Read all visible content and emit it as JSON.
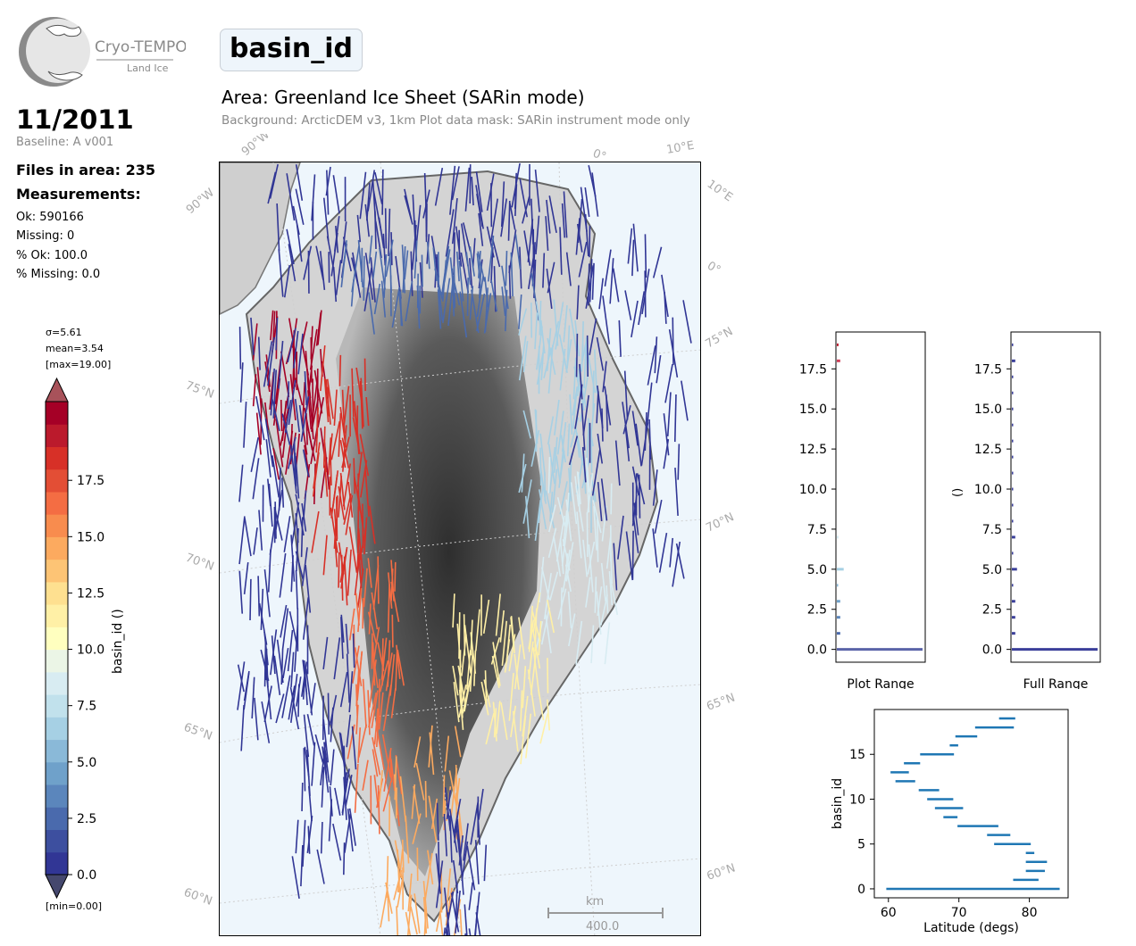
{
  "logo": {
    "name": "Cryo-TEMPO",
    "sub": "Land Ice"
  },
  "header": {
    "title": "basin_id",
    "area_title": "Area: Greenland Ice Sheet (SARin mode)",
    "subtitle": "Background: ArcticDEM v3, 1km   Plot data mask: SARin instrument mode only"
  },
  "info": {
    "date": "11/2011",
    "baseline": "Baseline: A v001",
    "files": "Files in area: 235",
    "measurements_heading": "Measurements:",
    "ok": "Ok: 590166",
    "missing": "Missing: 0",
    "pct_ok": "% Ok: 100.0",
    "pct_missing": "% Missing: 0.0"
  },
  "colorbar": {
    "sigma": "σ=5.61",
    "mean": "mean=3.54",
    "max": "[max=19.00]",
    "min": "[min=0.00]",
    "label": "basin_id ()",
    "ticks": [
      "0.0",
      "2.5",
      "5.0",
      "7.5",
      "10.0",
      "12.5",
      "15.0",
      "17.5"
    ],
    "colors": [
      "#313695",
      "#3d4f9f",
      "#4a6aad",
      "#5b86bc",
      "#6fa1ca",
      "#8ab9d8",
      "#a6d0e4",
      "#c1e1ec",
      "#d8ecf2",
      "#ebf5e6",
      "#ffffbf",
      "#fff0a6",
      "#fee090",
      "#fdc475",
      "#fcaa5f",
      "#f88c4e",
      "#f46d43",
      "#e34e35",
      "#d73027",
      "#bb1a2c",
      "#a50026"
    ],
    "extend_color_low": "#313695",
    "extend_color_high": "#a50026"
  },
  "map": {
    "lat_labels": [
      "75°N",
      "70°N",
      "65°N",
      "60°N",
      "75°N",
      "70°N",
      "65°N",
      "60°N"
    ],
    "lon_labels": [
      "90°W",
      "90°W",
      "0°",
      "10°E",
      "10°E",
      "0°"
    ],
    "scale_unit": "km",
    "scale_value": "400.0"
  },
  "hist_plot_range": {
    "xlabel": "Plot Range",
    "ylabel": ""
  },
  "hist_full_range": {
    "xlabel": "Full Range",
    "ylabel": "()"
  },
  "chart_data": [
    {
      "type": "bar",
      "name": "plot-range-histogram",
      "orientation": "horizontal",
      "xlabel": "Plot Range",
      "ylim": [
        -0.8,
        19.8
      ],
      "yticks": [
        0.0,
        2.5,
        5.0,
        7.5,
        10.0,
        12.5,
        15.0,
        17.5
      ],
      "ytick_labels": [
        "0.0",
        "2.5",
        "5.0",
        "7.5",
        "10.0",
        "12.5",
        "15.0",
        "17.5"
      ],
      "bars": [
        {
          "y": 0,
          "value": 1.0,
          "color": "#5a64a8"
        },
        {
          "y": 1,
          "value": 0.04,
          "color": "#4a6aad"
        },
        {
          "y": 2,
          "value": 0.04,
          "color": "#5b86bc"
        },
        {
          "y": 3,
          "value": 0.04,
          "color": "#6fa1ca"
        },
        {
          "y": 4,
          "value": 0.01,
          "color": "#8ab9d8"
        },
        {
          "y": 5,
          "value": 0.08,
          "color": "#a6d0e4"
        },
        {
          "y": 7,
          "value": 0.02,
          "color": "#d8ecf2"
        },
        {
          "y": 18,
          "value": 0.04,
          "color": "#d0405a"
        },
        {
          "y": 19,
          "value": 0.02,
          "color": "#bb1a2c"
        }
      ]
    },
    {
      "type": "bar",
      "name": "full-range-histogram",
      "orientation": "horizontal",
      "xlabel": "Full Range",
      "ylabel": "()",
      "ylim": [
        -0.8,
        19.8
      ],
      "yticks": [
        0.0,
        2.5,
        5.0,
        7.5,
        10.0,
        12.5,
        15.0,
        17.5
      ],
      "ytick_labels": [
        "0.0",
        "2.5",
        "5.0",
        "7.5",
        "10.0",
        "12.5",
        "15.0",
        "17.5"
      ],
      "bars": [
        {
          "y": 0,
          "value": 1.0
        },
        {
          "y": 1,
          "value": 0.04
        },
        {
          "y": 2,
          "value": 0.04
        },
        {
          "y": 3,
          "value": 0.04
        },
        {
          "y": 4,
          "value": 0.01
        },
        {
          "y": 5,
          "value": 0.06
        },
        {
          "y": 6,
          "value": 0.01
        },
        {
          "y": 7,
          "value": 0.04
        },
        {
          "y": 8,
          "value": 0.01
        },
        {
          "y": 9,
          "value": 0.01
        },
        {
          "y": 10,
          "value": 0.01
        },
        {
          "y": 11,
          "value": 0.01
        },
        {
          "y": 12,
          "value": 0.01
        },
        {
          "y": 13,
          "value": 0.01
        },
        {
          "y": 14,
          "value": 0.01
        },
        {
          "y": 15,
          "value": 0.01
        },
        {
          "y": 16,
          "value": 0.01
        },
        {
          "y": 17,
          "value": 0.01
        },
        {
          "y": 18,
          "value": 0.04
        },
        {
          "y": 19,
          "value": 0.01
        }
      ],
      "color": "#3b3f9a"
    },
    {
      "type": "line",
      "name": "basin-latitude-range",
      "xlabel": "Latitude (degs)",
      "ylabel": "basin_id",
      "xlim": [
        58,
        85.5
      ],
      "ylim": [
        -1,
        20
      ],
      "xticks": [
        60,
        70,
        80
      ],
      "yticks": [
        0,
        5,
        10,
        15
      ],
      "color": "#1f77b4",
      "segments": [
        {
          "basin": 0,
          "lat_min": 59.7,
          "lat_max": 84.3
        },
        {
          "basin": 1,
          "lat_min": 77.7,
          "lat_max": 81.3
        },
        {
          "basin": 2,
          "lat_min": 79.5,
          "lat_max": 82.2
        },
        {
          "basin": 3,
          "lat_min": 79.5,
          "lat_max": 82.5
        },
        {
          "basin": 4,
          "lat_min": 79.5,
          "lat_max": 80.7
        },
        {
          "basin": 5,
          "lat_min": 75.0,
          "lat_max": 80.2
        },
        {
          "basin": 6,
          "lat_min": 74.0,
          "lat_max": 77.3
        },
        {
          "basin": 7,
          "lat_min": 69.8,
          "lat_max": 75.6
        },
        {
          "basin": 8,
          "lat_min": 67.8,
          "lat_max": 69.8
        },
        {
          "basin": 9,
          "lat_min": 66.6,
          "lat_max": 70.6
        },
        {
          "basin": 10,
          "lat_min": 65.5,
          "lat_max": 69.2
        },
        {
          "basin": 11,
          "lat_min": 64.3,
          "lat_max": 67.2
        },
        {
          "basin": 12,
          "lat_min": 61.0,
          "lat_max": 63.8
        },
        {
          "basin": 13,
          "lat_min": 60.3,
          "lat_max": 62.9
        },
        {
          "basin": 14,
          "lat_min": 62.2,
          "lat_max": 64.5
        },
        {
          "basin": 15,
          "lat_min": 64.5,
          "lat_max": 69.3
        },
        {
          "basin": 16,
          "lat_min": 68.7,
          "lat_max": 69.9
        },
        {
          "basin": 17,
          "lat_min": 69.5,
          "lat_max": 72.6
        },
        {
          "basin": 18,
          "lat_min": 72.3,
          "lat_max": 77.8
        },
        {
          "basin": 19,
          "lat_min": 75.7,
          "lat_max": 78.0
        }
      ]
    }
  ]
}
